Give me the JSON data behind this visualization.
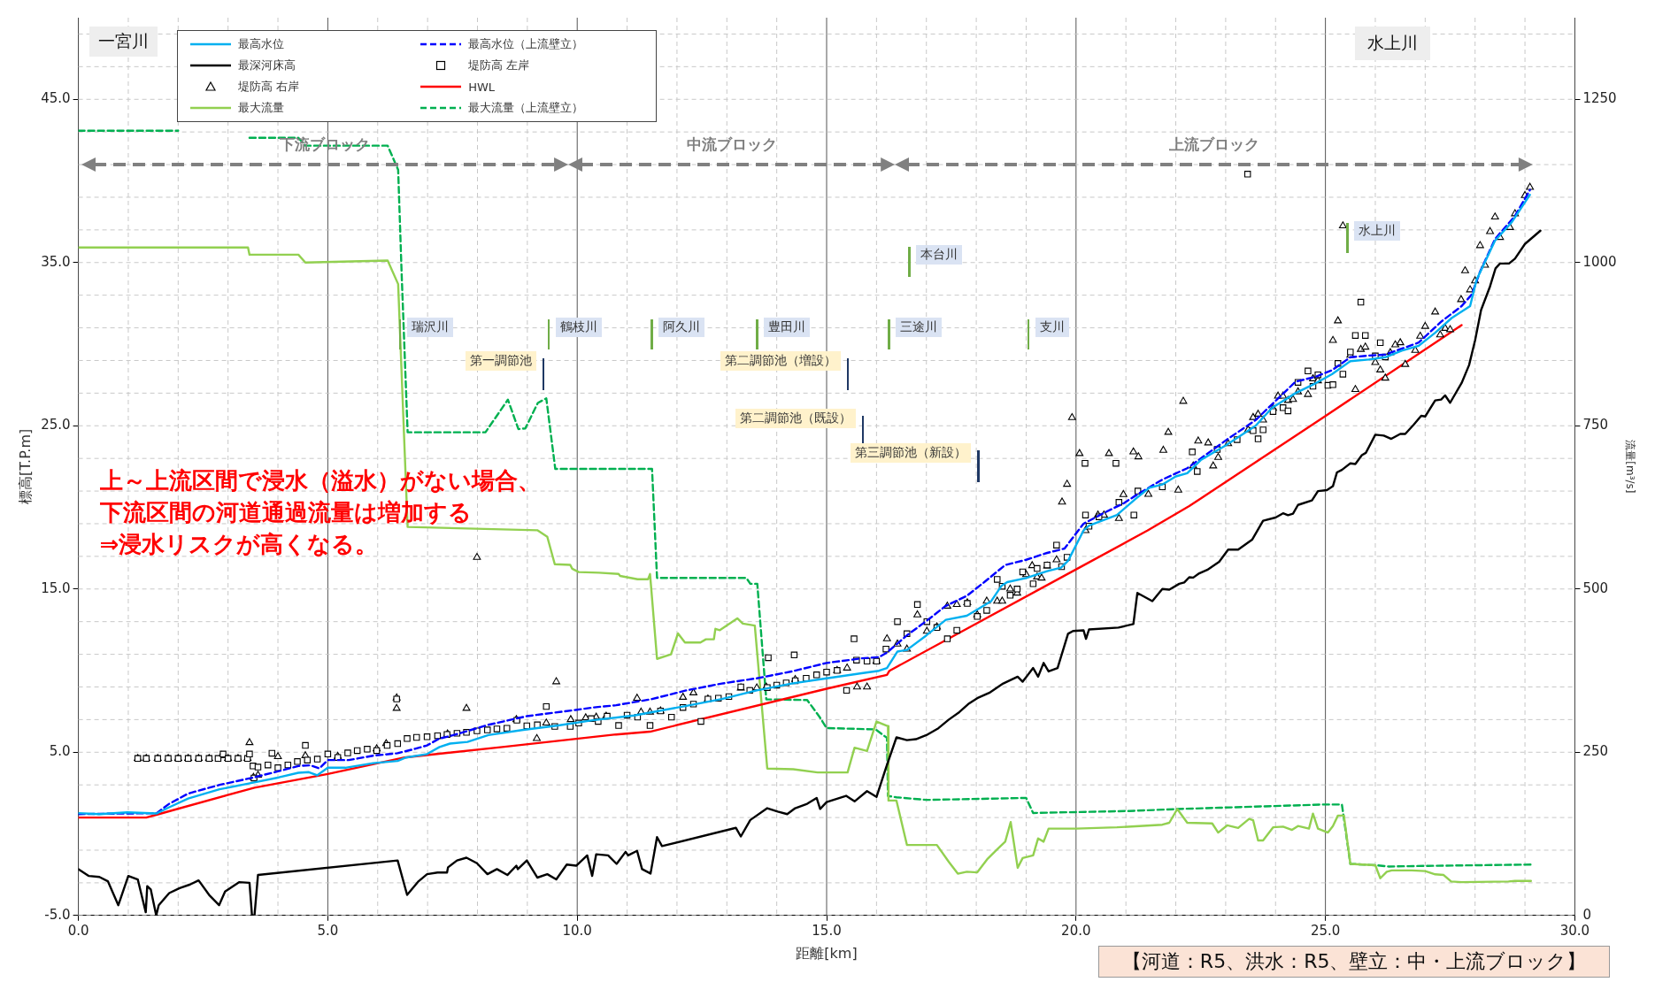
{
  "chart_data": {
    "type": "line",
    "xlabel": "距離[km]",
    "ylabel": "標高[T.P.m]",
    "y2label": "流量[m³/s]",
    "xlim": [
      0,
      30
    ],
    "xticks": [
      {
        "value": 0,
        "label": "0.0"
      },
      {
        "value": 1,
        "label": null
      },
      {
        "value": 2,
        "label": null
      },
      {
        "value": 3,
        "label": null
      },
      {
        "value": 4,
        "label": null
      },
      {
        "value": 5,
        "label": "5.0"
      },
      {
        "value": 6,
        "label": null
      },
      {
        "value": 7,
        "label": null
      },
      {
        "value": 8,
        "label": null
      },
      {
        "value": 9,
        "label": null
      },
      {
        "value": 10,
        "label": "10.0"
      },
      {
        "value": 11,
        "label": null
      },
      {
        "value": 12,
        "label": null
      },
      {
        "value": 13,
        "label": null
      },
      {
        "value": 14,
        "label": null
      },
      {
        "value": 15,
        "label": "15.0"
      },
      {
        "value": 16,
        "label": null
      },
      {
        "value": 17,
        "label": null
      },
      {
        "value": 18,
        "label": null
      },
      {
        "value": 19,
        "label": null
      },
      {
        "value": 20,
        "label": "20.0"
      },
      {
        "value": 21,
        "label": null
      },
      {
        "value": 22,
        "label": null
      },
      {
        "value": 23,
        "label": null
      },
      {
        "value": 24,
        "label": null
      },
      {
        "value": 25,
        "label": "25.0"
      },
      {
        "value": 26,
        "label": null
      },
      {
        "value": 27,
        "label": null
      },
      {
        "value": 28,
        "label": null
      },
      {
        "value": 29,
        "label": null
      },
      {
        "value": 30,
        "label": "30.0"
      }
    ],
    "ylim": [
      -5,
      50
    ],
    "yticks": [
      {
        "value": -5,
        "label": "-5.0"
      },
      {
        "value": -3,
        "label": null
      },
      {
        "value": -1,
        "label": null
      },
      {
        "value": 1,
        "label": null
      },
      {
        "value": 3,
        "label": null
      },
      {
        "value": 5,
        "label": "5.0"
      },
      {
        "value": 7,
        "label": null
      },
      {
        "value": 9,
        "label": null
      },
      {
        "value": 11,
        "label": null
      },
      {
        "value": 13,
        "label": null
      },
      {
        "value": 15,
        "label": "15.0"
      },
      {
        "value": 17,
        "label": null
      },
      {
        "value": 19,
        "label": null
      },
      {
        "value": 21,
        "label": null
      },
      {
        "value": 23,
        "label": null
      },
      {
        "value": 25,
        "label": "25.0"
      },
      {
        "value": 27,
        "label": null
      },
      {
        "value": 29,
        "label": null
      },
      {
        "value": 31,
        "label": null
      },
      {
        "value": 33,
        "label": null
      },
      {
        "value": 35,
        "label": "35.0"
      },
      {
        "value": 37,
        "label": null
      },
      {
        "value": 39,
        "label": null
      },
      {
        "value": 41,
        "label": null
      },
      {
        "value": 43,
        "label": null
      },
      {
        "value": 45,
        "label": "45.0"
      },
      {
        "value": 47,
        "label": null
      },
      {
        "value": 49,
        "label": null
      }
    ],
    "y2lim": [
      0,
      1375
    ],
    "y2ticks": [
      0,
      250,
      500,
      750,
      1000,
      1250
    ],
    "grid": true,
    "legend": "top left",
    "series": [
      {
        "name": "最高水位",
        "color": "#00b0f0",
        "x": [
          0,
          0.42,
          0.98,
          1.57,
          1.82,
          2.2,
          2.83,
          3.46,
          4.02,
          4.41,
          4.62,
          4.79,
          5.0,
          5.35,
          5.91,
          6.4,
          6.57,
          6.99,
          7.24,
          7.45,
          7.8,
          8.22,
          8.92,
          9.62,
          10.31,
          11.14,
          12.19,
          12.9,
          13.6,
          14.3,
          15.0,
          15.7,
          16.05,
          16.21,
          16.42,
          16.61,
          17.0,
          17.39,
          17.81,
          18.02,
          18.3,
          18.51,
          18.62,
          19.0,
          19.42,
          19.7,
          19.84,
          20.15,
          20.26,
          20.82,
          21.2,
          21.47,
          21.73,
          22.0,
          22.23,
          22.5,
          23.0,
          23.6,
          23.93,
          24.4,
          24.8,
          25.13,
          25.5,
          25.87,
          26.2,
          26.53,
          26.87,
          27.2,
          27.53,
          27.9,
          28.03,
          28.4,
          28.73,
          29.1
        ],
        "values": [
          1.27,
          1.21,
          1.32,
          1.25,
          1.63,
          2.16,
          2.73,
          3.11,
          3.46,
          3.74,
          3.78,
          3.59,
          4.05,
          4.05,
          4.33,
          4.47,
          4.68,
          4.89,
          5.32,
          5.53,
          5.63,
          6.05,
          6.37,
          6.64,
          6.96,
          7.25,
          7.84,
          8.26,
          8.79,
          9.21,
          9.53,
          9.84,
          9.99,
          10.16,
          11.17,
          11.27,
          12.16,
          13.11,
          13.36,
          13.74,
          14.26,
          15.21,
          15.42,
          15.67,
          16.09,
          16.31,
          16.73,
          18.58,
          18.89,
          19.53,
          20.54,
          21.2,
          21.4,
          21.9,
          22.1,
          22.9,
          23.8,
          25.0,
          26.1,
          27.0,
          27.6,
          28.16,
          28.96,
          29.06,
          29.2,
          29.6,
          29.9,
          30.7,
          31.6,
          32.33,
          33.94,
          36.34,
          37.45,
          39.15
        ]
      },
      {
        "name": "最高水位（上流壁立）",
        "line_style": "dashed",
        "color": "#0000ff",
        "x": [
          0,
          1.57,
          1.82,
          2.2,
          2.83,
          3.46,
          4.02,
          4.41,
          4.65,
          4.83,
          5.0,
          5.42,
          5.91,
          6.4,
          6.75,
          6.99,
          7.24,
          7.52,
          8.22,
          8.99,
          9.97,
          10.31,
          10.78,
          11.5,
          12.19,
          12.9,
          13.6,
          14.3,
          15.0,
          15.7,
          16.05,
          16.21,
          16.61,
          17.03,
          17.38,
          17.81,
          18.16,
          18.58,
          19.0,
          19.42,
          19.77,
          20.15,
          20.54,
          20.96,
          21.2,
          21.73,
          22.23,
          23.0,
          23.6,
          24.4,
          24.8,
          25.13,
          25.5,
          25.87,
          26.2,
          26.87,
          27.33,
          27.73,
          27.93,
          28.1,
          28.4,
          28.8,
          29.1
        ],
        "values": [
          1.21,
          1.27,
          1.84,
          2.47,
          3.0,
          3.42,
          3.84,
          4.16,
          4.2,
          4.01,
          4.52,
          4.52,
          4.79,
          4.94,
          5.21,
          5.42,
          5.84,
          6.05,
          6.68,
          7.21,
          7.59,
          7.74,
          7.88,
          8.26,
          8.79,
          9.21,
          9.53,
          9.95,
          10.47,
          10.75,
          10.83,
          11.11,
          12.16,
          13.11,
          13.95,
          14.58,
          15.42,
          16.47,
          16.79,
          17.21,
          17.48,
          19.0,
          19.63,
          20.26,
          20.74,
          21.7,
          22.4,
          24.1,
          25.35,
          27.7,
          28.0,
          28.4,
          29.2,
          29.3,
          29.36,
          30.1,
          31.4,
          32.33,
          33.03,
          34.44,
          36.44,
          37.85,
          39.45
        ]
      },
      {
        "name": "最深河床高",
        "color": "#000000",
        "x": [
          0,
          0.21,
          0.42,
          0.59,
          0.8,
          1.0,
          1.19,
          1.35,
          1.38,
          1.45,
          1.56,
          1.61,
          1.82,
          2.03,
          2.24,
          2.41,
          2.62,
          2.82,
          2.94,
          3.22,
          3.43,
          3.48,
          3.53,
          3.6,
          6.4,
          6.59,
          6.82,
          6.99,
          7.2,
          7.39,
          7.41,
          7.59,
          7.78,
          7.99,
          8.2,
          8.39,
          8.6,
          8.78,
          8.81,
          8.99,
          9.2,
          9.4,
          9.58,
          9.79,
          9.98,
          10.2,
          10.3,
          10.38,
          10.62,
          10.79,
          10.97,
          11.02,
          11.2,
          11.3,
          11.47,
          11.6,
          11.7,
          13.18,
          13.28,
          13.47,
          13.81,
          14.02,
          14.21,
          14.37,
          14.61,
          14.8,
          14.87,
          15.0,
          15.39,
          15.56,
          15.81,
          16.0,
          16.19,
          16.4,
          16.61,
          16.79,
          17.0,
          17.24,
          17.45,
          17.66,
          17.84,
          18.02,
          18.26,
          18.54,
          18.83,
          18.93,
          19.14,
          19.24,
          19.35,
          19.45,
          19.63,
          19.84,
          19.94,
          20.15,
          20.2,
          20.26,
          20.85,
          21.15,
          21.23,
          21.53,
          21.73,
          21.87,
          22.07,
          22.17,
          22.27,
          22.35,
          22.47,
          22.63,
          22.87,
          23.05,
          23.25,
          23.53,
          23.75,
          24.0,
          24.15,
          24.25,
          24.35,
          24.45,
          24.73,
          24.85,
          25.03,
          25.15,
          25.23,
          25.33,
          25.5,
          25.6,
          25.73,
          25.81,
          26.0,
          26.17,
          26.32,
          26.5,
          26.6,
          26.77,
          26.92,
          27.0,
          27.2,
          27.32,
          27.4,
          27.5,
          27.73,
          27.88,
          28.0,
          28.12,
          28.3,
          28.41,
          28.5,
          28.68,
          28.8,
          29.0,
          29.31
        ],
        "values": [
          -2.16,
          -2.58,
          -2.64,
          -2.9,
          -4.37,
          -2.58,
          -2.79,
          -4.8,
          -3.2,
          -3.4,
          -5,
          -4.37,
          -3.63,
          -3.32,
          -3.1,
          -2.85,
          -3.74,
          -4.37,
          -3.53,
          -2.96,
          -3.0,
          -5,
          -5,
          -2.52,
          -1.63,
          -3.74,
          -2.9,
          -2.47,
          -2.37,
          -2.37,
          -2.05,
          -1.63,
          -1.46,
          -1.8,
          -2.47,
          -2.16,
          -2.52,
          -1.95,
          -2.16,
          -1.63,
          -2.68,
          -2.47,
          -2.79,
          -1.88,
          -1.95,
          -1.32,
          -2.58,
          -1.25,
          -1.32,
          -1.84,
          -1.1,
          -1.32,
          -1.04,
          -2.16,
          -2.43,
          -0.2,
          -0.75,
          0.37,
          -0.16,
          0.85,
          1.57,
          1.36,
          1.21,
          1.57,
          1.84,
          2.2,
          1.53,
          1.95,
          2.33,
          1.99,
          2.62,
          2.26,
          4.05,
          5.91,
          5.74,
          5.8,
          6.05,
          6.47,
          7.0,
          7.46,
          7.95,
          8.31,
          8.64,
          9.21,
          9.63,
          9.32,
          10.16,
          9.63,
          10.47,
          9.95,
          10.16,
          12.26,
          12.43,
          12.47,
          11.95,
          12.52,
          12.64,
          12.85,
          14.76,
          14.26,
          15.0,
          14.96,
          15.32,
          15.4,
          15.72,
          15.7,
          15.96,
          16.17,
          16.67,
          17.41,
          17.41,
          18.02,
          19.18,
          19.38,
          19.64,
          19.52,
          19.62,
          20.15,
          20.43,
          21.0,
          21.06,
          21.3,
          22.14,
          22.3,
          22.7,
          22.66,
          23.2,
          23.34,
          24.45,
          24.4,
          24.2,
          24.5,
          24.5,
          25.07,
          25.61,
          25.57,
          26.55,
          26.61,
          26.86,
          26.41,
          27.62,
          28.72,
          30.23,
          32.09,
          33.54,
          34.64,
          34.94,
          34.94,
          35.24,
          36.14,
          36.95
        ]
      },
      {
        "name": "堤防高 左岸",
        "type": "scatter",
        "marker": "square",
        "color": "#000000",
        "x": [
          1.19,
          1.36,
          1.59,
          1.8,
          2.0,
          2.2,
          2.41,
          2.62,
          2.8,
          2.9,
          3.0,
          3.2,
          3.39,
          3.43,
          3.5,
          3.52,
          3.6,
          3.8,
          3.88,
          4.0,
          4.2,
          4.39,
          4.55,
          4.59,
          4.79,
          5.0,
          5.2,
          5.4,
          5.59,
          5.79,
          5.98,
          6.19,
          6.38,
          6.4,
          6.59,
          6.78,
          6.99,
          7.2,
          7.39,
          7.59,
          7.78,
          7.99,
          8.2,
          8.39,
          8.59,
          8.79,
          8.99,
          9.2,
          9.38,
          9.55,
          9.86,
          10.03,
          10.28,
          10.42,
          10.6,
          10.83,
          11.0,
          11.21,
          11.46,
          11.67,
          11.89,
          12.12,
          12.33,
          12.48,
          12.62,
          12.83,
          13.04,
          13.28,
          13.46,
          13.81,
          13.83,
          14.0,
          14.19,
          14.35,
          14.37,
          14.59,
          14.8,
          15.0,
          15.21,
          15.4,
          15.55,
          15.6,
          15.81,
          16.0,
          16.19,
          16.42,
          16.61,
          16.82,
          17.01,
          17.21,
          17.42,
          17.61,
          17.82,
          18.02,
          18.21,
          18.42,
          18.52,
          18.68,
          18.82,
          18.93,
          19.14,
          19.22,
          19.42,
          19.61,
          19.71,
          19.82,
          20.18,
          20.19,
          20.26,
          20.46,
          20.8,
          20.86,
          21.16,
          21.24,
          21.73,
          22.33,
          22.43,
          22.83,
          23.23,
          23.44,
          23.55,
          23.65,
          23.75,
          23.95,
          24.15,
          24.25,
          24.45,
          24.65,
          24.75,
          24.85,
          25.05,
          25.15,
          25.25,
          25.35,
          25.5,
          25.6,
          25.71,
          25.8,
          26.0,
          26.1,
          26.2
        ],
        "values": [
          4.62,
          4.62,
          4.62,
          4.62,
          4.62,
          4.62,
          4.62,
          4.62,
          4.62,
          4.89,
          4.62,
          4.62,
          4.62,
          4.89,
          4.16,
          3.42,
          4.09,
          4.22,
          4.94,
          4.05,
          4.22,
          4.43,
          5.42,
          4.52,
          4.58,
          4.89,
          4.68,
          4.96,
          5.1,
          5.19,
          5.1,
          5.42,
          8.26,
          5.53,
          5.84,
          5.91,
          5.95,
          6.01,
          6.09,
          6.16,
          6.22,
          6.31,
          6.37,
          6.43,
          6.47,
          6.96,
          6.62,
          6.68,
          7.8,
          6.58,
          6.58,
          6.79,
          7.06,
          6.89,
          7.21,
          6.64,
          7.27,
          7.15,
          6.64,
          7.53,
          7.15,
          7.74,
          7.95,
          6.89,
          8.26,
          8.31,
          8.41,
          9.0,
          8.79,
          8.96,
          10.79,
          9.11,
          9.25,
          10.96,
          9.38,
          9.53,
          9.74,
          9.91,
          10.01,
          8.79,
          11.95,
          10.64,
          10.58,
          10.58,
          11.32,
          13.0,
          12.26,
          14.05,
          13.0,
          12.64,
          11.95,
          12.47,
          14.12,
          13.32,
          13.69,
          15.59,
          15.17,
          14.62,
          15.0,
          16.05,
          15.32,
          16.26,
          16.47,
          17.69,
          16.37,
          16.94,
          22.7,
          19.53,
          18.85,
          19.42,
          22.7,
          20.31,
          19.53,
          21.0,
          21.26,
          23.4,
          22.2,
          23.55,
          24.15,
          40.42,
          24.7,
          24.2,
          24.75,
          25.87,
          26.11,
          25.91,
          27.66,
          28.36,
          27.42,
          28.12,
          27.48,
          27.52,
          28.82,
          28.16,
          29.52,
          30.53,
          32.57,
          30.53,
          29.28,
          30.09,
          29.22
        ]
      },
      {
        "name": "堤防高 右岸",
        "type": "scatter",
        "marker": "triangle",
        "color": "#000000",
        "x": [
          1.19,
          1.36,
          1.59,
          1.8,
          2.0,
          2.2,
          2.41,
          2.62,
          2.87,
          3.0,
          3.2,
          3.39,
          3.43,
          3.51,
          3.6,
          4.0,
          4.55,
          5.2,
          5.98,
          6.17,
          6.38,
          6.38,
          7.4,
          7.78,
          7.99,
          8.78,
          9.19,
          9.38,
          9.58,
          9.87,
          10.17,
          10.38,
          10.58,
          11.2,
          11.28,
          11.46,
          11.67,
          12.12,
          12.33,
          12.62,
          13.28,
          13.6,
          13.79,
          14.37,
          15.21,
          15.41,
          15.61,
          15.81,
          16.0,
          16.21,
          16.42,
          16.61,
          16.82,
          17.01,
          17.21,
          17.42,
          17.61,
          17.82,
          18.02,
          18.21,
          18.42,
          18.52,
          18.68,
          18.82,
          19.0,
          19.12,
          19.22,
          19.31,
          19.42,
          19.61,
          19.72,
          19.82,
          19.92,
          20.07,
          20.19,
          20.44,
          20.56,
          20.66,
          20.86,
          20.95,
          21.15,
          21.25,
          21.45,
          21.75,
          21.85,
          22.05,
          22.15,
          22.35,
          22.45,
          22.65,
          22.75,
          22.85,
          23.05,
          23.45,
          23.55,
          23.65,
          23.75,
          23.95,
          24.05,
          24.15,
          24.25,
          24.35,
          24.45,
          24.65,
          24.75,
          24.85,
          25.15,
          25.25,
          25.35,
          25.5,
          25.6,
          25.71,
          25.8,
          26.0,
          26.1,
          26.2,
          26.3,
          26.4,
          26.5,
          26.6,
          26.8,
          26.9,
          27.0,
          27.2,
          27.3,
          27.4,
          27.5,
          27.72,
          27.8,
          27.9,
          28.0,
          28.1,
          28.2,
          28.3,
          28.4,
          28.5,
          28.7,
          28.8,
          29.0,
          29.1
        ],
        "values": [
          4.62,
          4.62,
          4.62,
          4.62,
          4.62,
          4.62,
          4.62,
          4.62,
          4.79,
          4.62,
          4.62,
          4.62,
          5.59,
          3.46,
          3.59,
          4.73,
          4.79,
          4.75,
          5.21,
          5.53,
          7.69,
          8.33,
          6.12,
          7.69,
          16.94,
          7.0,
          5.84,
          6.79,
          9.32,
          7.0,
          7.11,
          7.15,
          7.21,
          8.31,
          7.46,
          7.46,
          7.53,
          8.37,
          8.64,
          8.26,
          8.94,
          8.94,
          9.0,
          9.46,
          10.01,
          10.16,
          9.0,
          9.0,
          10.58,
          11.95,
          11.63,
          11.32,
          13.42,
          12.41,
          12.68,
          13.95,
          14.05,
          14.16,
          13.42,
          14.26,
          14.26,
          14.26,
          15.0,
          14.75,
          15.88,
          16.43,
          15.74,
          15.67,
          16.41,
          16.79,
          20.33,
          21.42,
          25.5,
          23.3,
          18.58,
          19.53,
          19.53,
          23.3,
          19.32,
          20.79,
          23.4,
          23.1,
          20.8,
          23.5,
          24.6,
          21.06,
          26.5,
          22.54,
          24.07,
          23.95,
          22.54,
          23.06,
          23.9,
          24.75,
          25.51,
          25.71,
          25.35,
          26.07,
          26.82,
          26.82,
          26.55,
          26.61,
          27.08,
          26.92,
          27.88,
          27.76,
          30.23,
          31.43,
          37.25,
          29.32,
          27.22,
          29.68,
          29.82,
          28.88,
          28.42,
          27.92,
          29.48,
          29.96,
          30.09,
          28.76,
          29.62,
          30.49,
          31.09,
          31.97,
          30.57,
          30.97,
          30.89,
          32.73,
          34.5,
          33.33,
          33.88,
          36.04,
          34.84,
          36.9,
          37.79,
          36.54,
          37.15,
          37.99,
          39.11,
          39.61
        ]
      },
      {
        "name": "HWL",
        "color": "#ff0000",
        "x": [
          0,
          1.36,
          1.61,
          3.53,
          5.0,
          6.54,
          8.5,
          10.78,
          11.46,
          15.0,
          16.21,
          16.26,
          20.0,
          21.43,
          22.27,
          22.5,
          25.0,
          27.73
        ],
        "values": [
          1.0,
          1.0,
          1.21,
          2.83,
          3.67,
          4.68,
          5.32,
          6.09,
          6.26,
          8.89,
          9.74,
          9.99,
          16.2,
          18.58,
          20.08,
          20.54,
          25.6,
          31.17
        ]
      },
      {
        "name": "最大流量",
        "axis": "y2",
        "color": "#92d050",
        "x": [
          0,
          3.4,
          3.43,
          4.41,
          4.55,
          6.2,
          6.41,
          6.6,
          9.2,
          9.4,
          9.55,
          9.86,
          9.9,
          10.03,
          10.44,
          10.83,
          10.86,
          11.21,
          11.42,
          11.46,
          11.6,
          11.88,
          12.02,
          12.16,
          12.47,
          12.58,
          12.74,
          12.77,
          12.86,
          13.21,
          13.32,
          13.56,
          13.81,
          14.33,
          14.82,
          15.42,
          15.56,
          15.81,
          16.0,
          16.23,
          16.24,
          16.4,
          16.61,
          17.21,
          17.45,
          17.63,
          17.81,
          18.02,
          18.23,
          18.44,
          18.58,
          18.69,
          18.83,
          18.93,
          19.14,
          19.24,
          19.35,
          19.45,
          20.0,
          20.82,
          21.27,
          21.73,
          21.87,
          22.03,
          22.23,
          22.73,
          22.85,
          23.03,
          23.25,
          23.47,
          23.55,
          23.65,
          23.75,
          23.95,
          24.15,
          24.33,
          24.45,
          24.67,
          24.75,
          24.85,
          25.05,
          25.15,
          25.25,
          25.37,
          25.5,
          26.0,
          26.1,
          26.23,
          26.33,
          26.73,
          27.0,
          27.2,
          27.37,
          27.52,
          27.73,
          28.67,
          28.8,
          29.12
        ],
        "values": [
          1023,
          1023,
          1012,
          1012,
          1000,
          1003,
          967,
          595,
          590,
          580,
          538,
          537,
          531,
          526,
          525,
          523,
          520,
          515,
          515,
          523,
          393,
          400,
          432,
          418,
          418,
          423,
          423,
          439,
          437,
          455,
          447,
          444,
          225,
          224,
          219,
          219,
          257,
          252,
          297,
          290,
          176,
          176,
          108,
          108,
          82,
          64,
          67,
          66,
          87,
          103,
          113,
          143,
          73,
          88,
          92,
          118,
          113,
          133,
          133,
          135,
          137,
          139,
          142,
          163,
          142,
          141,
          127,
          138,
          134,
          148,
          146,
          115,
          115,
          135,
          136,
          131,
          137,
          133,
          156,
          133,
          127,
          137,
          153,
          153,
          79,
          77,
          57,
          67,
          69,
          69,
          68,
          63,
          62,
          52,
          51,
          52,
          53,
          53
        ]
      },
      {
        "name": "最大流量（上流壁立）",
        "line_style": "dashed",
        "axis": "y2",
        "color": "#00b050",
        "x": [
          0,
          2.0,
          2.5,
          3.43,
          4.41,
          4.55,
          6.2,
          6.41,
          6.48,
          6.6,
          8.16,
          8.61,
          8.82,
          8.96,
          9.21,
          9.38,
          9.56,
          11.5,
          11.6,
          13.39,
          13.47,
          13.61,
          13.79,
          14.61,
          14.85,
          15.0,
          15.98,
          16.21,
          16.23,
          16.4,
          17.0,
          19.0,
          19.14,
          21.07,
          22.03,
          22.87,
          25.0,
          25.33,
          25.5,
          26.0,
          26.27,
          27.07,
          29.13
        ],
        "values": [
          1202,
          1202,
          null,
          1191,
          1191,
          1179,
          1179,
          1142,
          983,
          740,
          740,
          790,
          745,
          746,
          785,
          792,
          684,
          684,
          517,
          517,
          508,
          508,
          331,
          330,
          305,
          287,
          285,
          272,
          183,
          181,
          177,
          180,
          157,
          160,
          163,
          165,
          170,
          170,
          79,
          77,
          75,
          76,
          78
        ]
      }
    ],
    "annotations": [
      "一宮川",
      "水上川",
      "上～上流区間で浸水（溢水）がない場合、",
      "下流区間の河道通過流量は増加する",
      "⇒浸水リスクが高くなる。",
      "【河道：R5、洪水：R5、壁立：中・上流ブロック】",
      "下流ブロック",
      "中流ブロック",
      "上流ブロック",
      "瑞沢川",
      "鶴枝川",
      "阿久川",
      "豊田川",
      "三途川",
      "本台川",
      "支川",
      "水上川",
      "第一調節池",
      "第二調節池（増設）",
      "第二調節池（既設）",
      "第三調節池（新設）"
    ]
  }
}
